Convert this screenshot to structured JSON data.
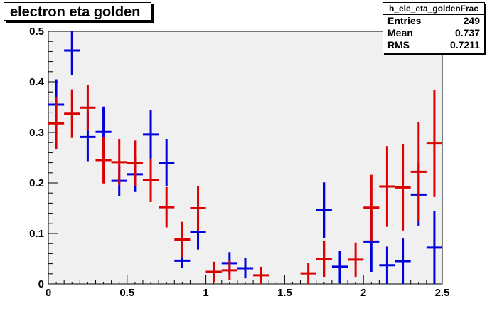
{
  "chart_data": {
    "type": "scatter",
    "title": "electron eta golden",
    "xlim": [
      0,
      2.5
    ],
    "ylim": [
      0,
      0.5
    ],
    "xticks": [
      "0",
      "0.5",
      "1",
      "1.5",
      "2",
      "2.5"
    ],
    "yticks": [
      "0",
      "0.1",
      "0.2",
      "0.3",
      "0.4",
      "0.5"
    ],
    "grid": false,
    "colors": {
      "frame_bg": "#f0f0f0",
      "blue": "#0000dd",
      "red": "#dd0000"
    },
    "series": [
      {
        "color": "blue",
        "points": [
          {
            "x": 0.05,
            "y": 0.355,
            "err": 0.05
          },
          {
            "x": 0.15,
            "y": 0.462,
            "err": 0.048
          },
          {
            "x": 0.25,
            "y": 0.291,
            "err": 0.048
          },
          {
            "x": 0.35,
            "y": 0.301,
            "err": 0.05
          },
          {
            "x": 0.45,
            "y": 0.204,
            "err": 0.03
          },
          {
            "x": 0.55,
            "y": 0.217,
            "err": 0.035
          },
          {
            "x": 0.65,
            "y": 0.296,
            "err": 0.048
          },
          {
            "x": 0.75,
            "y": 0.24,
            "err": 0.047
          },
          {
            "x": 0.85,
            "y": 0.046,
            "err": 0.014
          },
          {
            "x": 0.95,
            "y": 0.103,
            "err": 0.035
          },
          {
            "x": 1.05,
            "y": 0.024,
            "err": 0.018
          },
          {
            "x": 1.15,
            "y": 0.041,
            "err": 0.022
          },
          {
            "x": 1.25,
            "y": 0.031,
            "err": 0.02
          },
          {
            "x": 1.75,
            "y": 0.146,
            "err": 0.055
          },
          {
            "x": 1.85,
            "y": 0.034,
            "err": 0.032
          },
          {
            "x": 2.05,
            "y": 0.084,
            "err": 0.06
          },
          {
            "x": 2.15,
            "y": 0.037,
            "err": 0.037
          },
          {
            "x": 2.25,
            "y": 0.045,
            "err": 0.045
          },
          {
            "x": 2.35,
            "y": 0.177,
            "err": 0.062
          },
          {
            "x": 2.45,
            "y": 0.072,
            "err": 0.072
          }
        ]
      },
      {
        "color": "red",
        "points": [
          {
            "x": 0.05,
            "y": 0.318,
            "err": 0.052
          },
          {
            "x": 0.15,
            "y": 0.337,
            "err": 0.048
          },
          {
            "x": 0.25,
            "y": 0.349,
            "err": 0.045
          },
          {
            "x": 0.35,
            "y": 0.245,
            "err": 0.046
          },
          {
            "x": 0.45,
            "y": 0.241,
            "err": 0.045
          },
          {
            "x": 0.55,
            "y": 0.239,
            "err": 0.045
          },
          {
            "x": 0.65,
            "y": 0.205,
            "err": 0.043
          },
          {
            "x": 0.75,
            "y": 0.152,
            "err": 0.04
          },
          {
            "x": 0.85,
            "y": 0.088,
            "err": 0.035
          },
          {
            "x": 0.95,
            "y": 0.15,
            "err": 0.044
          },
          {
            "x": 1.05,
            "y": 0.024,
            "err": 0.02
          },
          {
            "x": 1.15,
            "y": 0.027,
            "err": 0.02
          },
          {
            "x": 1.35,
            "y": 0.017,
            "err": 0.017
          },
          {
            "x": 1.65,
            "y": 0.021,
            "err": 0.021
          },
          {
            "x": 1.75,
            "y": 0.05,
            "err": 0.036
          },
          {
            "x": 1.95,
            "y": 0.048,
            "err": 0.034
          },
          {
            "x": 2.05,
            "y": 0.151,
            "err": 0.065
          },
          {
            "x": 2.15,
            "y": 0.193,
            "err": 0.08
          },
          {
            "x": 2.25,
            "y": 0.191,
            "err": 0.085
          },
          {
            "x": 2.35,
            "y": 0.222,
            "err": 0.098
          },
          {
            "x": 2.45,
            "y": 0.278,
            "err": 0.106
          }
        ]
      }
    ]
  },
  "stats": {
    "title": "h_ele_eta_goldenFrac",
    "rows": [
      {
        "label": "Entries",
        "value": "249"
      },
      {
        "label": "Mean",
        "value": "0.737"
      },
      {
        "label": "RMS",
        "value": "0.7211"
      }
    ]
  }
}
